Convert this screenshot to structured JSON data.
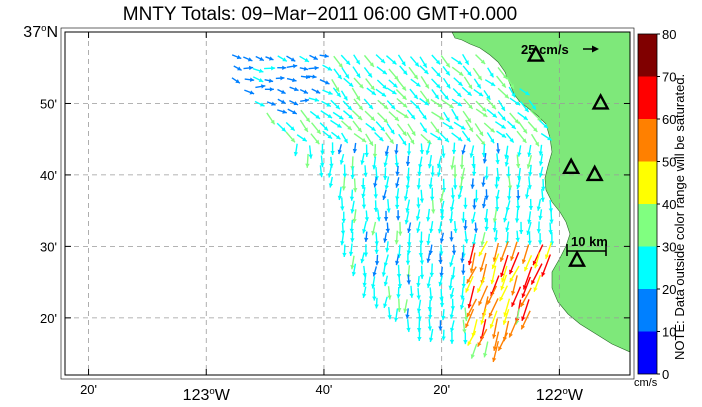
{
  "title": "MNTY Totals: 09−Mar−2011 06:00 GMT+0.000",
  "map": {
    "lon_range": [
      -123.4,
      -121.8
    ],
    "lat_range": [
      36.2,
      37.0
    ],
    "lat_ticks": [
      {
        "value": 37.0,
        "label": "37",
        "suffix": "N",
        "degree": true
      },
      {
        "value": 36.8333,
        "label": "50'"
      },
      {
        "value": 36.6667,
        "label": "40'"
      },
      {
        "value": 36.5,
        "label": "30'"
      },
      {
        "value": 36.3333,
        "label": "20'"
      }
    ],
    "lon_ticks": [
      {
        "value": -123.3333,
        "label": "20'"
      },
      {
        "value": -123.0,
        "label": "123",
        "suffix": "W",
        "degree": true
      },
      {
        "value": -122.6667,
        "label": "40'"
      },
      {
        "value": -122.3333,
        "label": "20'"
      },
      {
        "value": -122.0,
        "label": "122",
        "suffix": "W",
        "degree": true
      }
    ],
    "land_color": "#7ee87a",
    "scale_vector_label": "25 cm/s",
    "scale_bar_label": "10 km",
    "stations": [
      {
        "lon": -122.0667,
        "lat": 36.945
      },
      {
        "lon": -121.8833,
        "lat": 36.8333
      },
      {
        "lon": -121.9667,
        "lat": 36.6833
      },
      {
        "lon": -121.9,
        "lat": 36.6667
      },
      {
        "lon": -121.95,
        "lat": 36.4667
      }
    ]
  },
  "colorbar": {
    "ticks": [
      "0",
      "10",
      "20",
      "30",
      "40",
      "50",
      "60",
      "70",
      "80"
    ],
    "colors": [
      "#0000ff",
      "#0080ff",
      "#00ffff",
      "#80ff80",
      "#ffff00",
      "#ff8000",
      "#ff0000",
      "#800000"
    ],
    "unit": "cm/s",
    "note": "NOTE: Data outside color range will be saturated."
  }
}
